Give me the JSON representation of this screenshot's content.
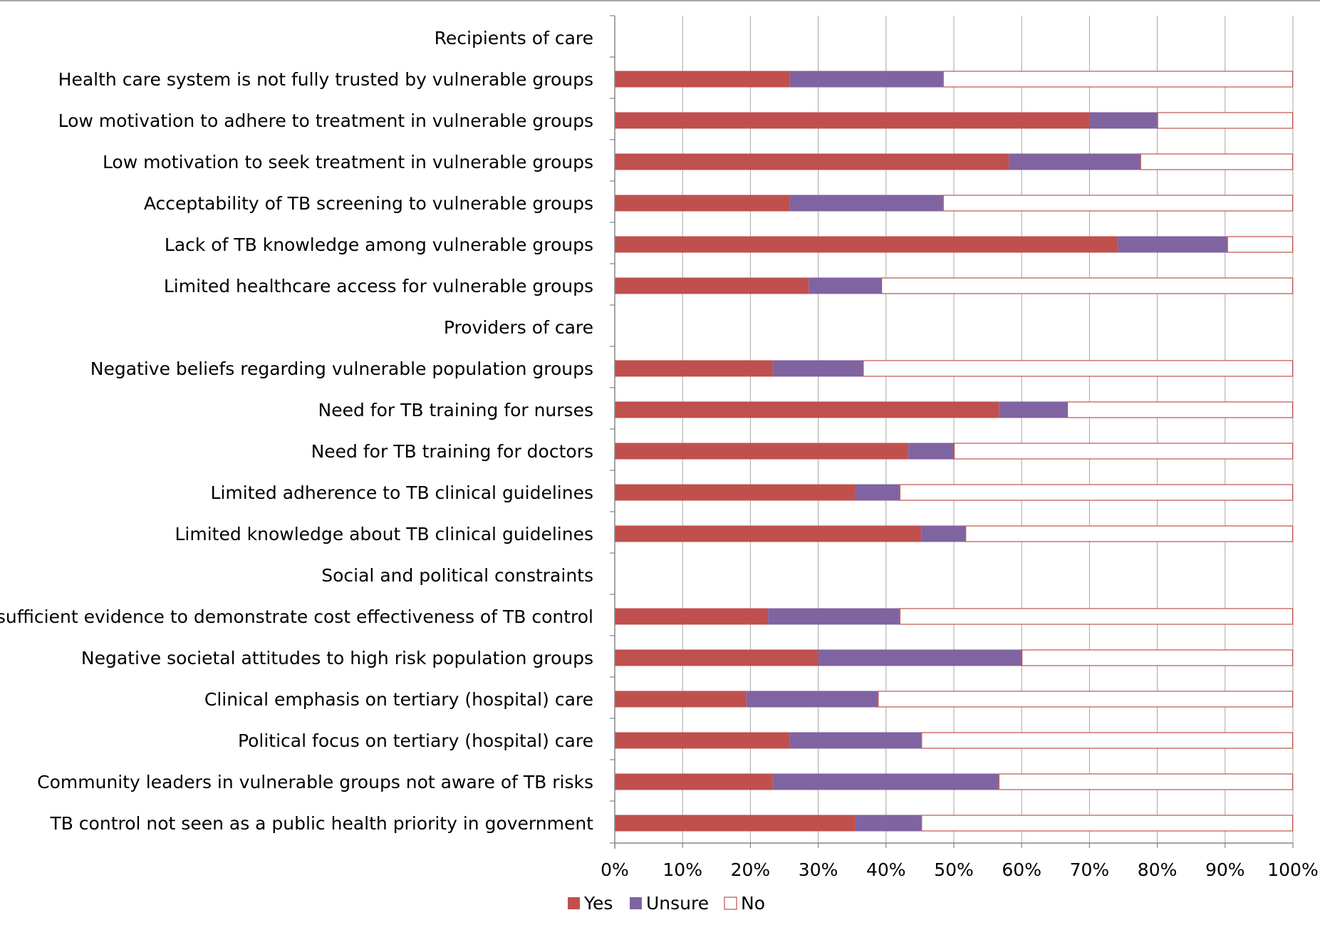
{
  "colors": {
    "yes": "#C0504D",
    "unsure": "#8064A2",
    "no": "#FFFFFF",
    "no_border": "#C0504D",
    "grid": "#A6A6A6",
    "axis": "#868686"
  },
  "chart_data": {
    "type": "bar",
    "orientation": "horizontal",
    "stacked": "percent",
    "categories": [
      "Recipients of care",
      "Health care system is not fully trusted by vulnerable groups",
      "Low motivation to adhere to treatment in vulnerable groups",
      "Low motivation to seek treatment in vulnerable groups",
      "Acceptability of TB screening to vulnerable groups",
      "Lack of TB knowledge among vulnerable groups",
      "Limited healthcare access for vulnerable groups",
      "Providers of care",
      "Negative beliefs regarding vulnerable population groups",
      "Need for TB training for nurses",
      "Need for TB training for doctors",
      "Limited adherence to TB clinical guidelines",
      "Limited knowledge about TB clinical guidelines",
      "Social and political constraints",
      "Insufficient evidence to demonstrate cost effectiveness of TB control",
      "Negative societal attitudes to high risk population groups",
      "Clinical emphasis on tertiary (hospital) care",
      "Political focus on tertiary (hospital) care",
      "Community leaders in vulnerable groups not aware of TB risks",
      "TB control not seen as a public health priority in government"
    ],
    "series": [
      {
        "name": "Yes",
        "values": [
          null,
          25.8,
          70.0,
          58.1,
          25.8,
          74.2,
          28.6,
          null,
          23.3,
          56.7,
          43.3,
          35.5,
          45.2,
          null,
          22.6,
          30.0,
          19.4,
          25.8,
          23.3,
          35.5
        ]
      },
      {
        "name": "Unsure",
        "values": [
          null,
          22.6,
          10.0,
          19.4,
          22.6,
          16.1,
          10.7,
          null,
          13.3,
          10.0,
          6.7,
          6.5,
          6.5,
          null,
          19.4,
          30.0,
          19.4,
          19.4,
          33.3,
          9.7
        ]
      },
      {
        "name": "No",
        "values": [
          null,
          51.6,
          20.0,
          22.5,
          51.6,
          9.7,
          60.7,
          null,
          63.4,
          33.3,
          50.0,
          58.0,
          48.3,
          null,
          58.0,
          40.0,
          61.2,
          54.8,
          43.4,
          54.8
        ]
      }
    ],
    "xlim": [
      0,
      100
    ],
    "xticks": [
      "0%",
      "10%",
      "20%",
      "30%",
      "40%",
      "50%",
      "60%",
      "70%",
      "80%",
      "90%",
      "100%"
    ],
    "grid": true,
    "legend": "bottom",
    "title": "",
    "xlabel": "",
    "ylabel": ""
  }
}
